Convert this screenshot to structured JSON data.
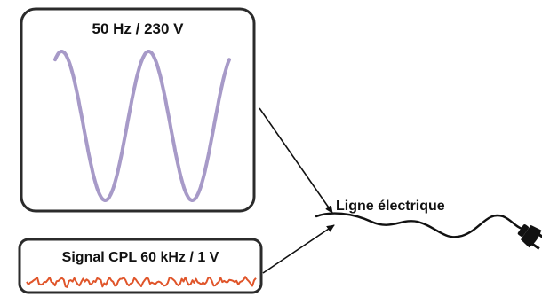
{
  "mains_box": {
    "label": "50 Hz / 230 V"
  },
  "plc_box": {
    "label": "Signal CPL 60 kHz / 1 V"
  },
  "line": {
    "label": "Ligne électrique"
  },
  "colors": {
    "mains_wave": "#a79ac8",
    "plc_wave": "#e0552a",
    "box_border": "#2b2b2b",
    "cable": "#111111",
    "plug": "#111111"
  },
  "icons": {
    "plug": "power-plug-icon"
  }
}
